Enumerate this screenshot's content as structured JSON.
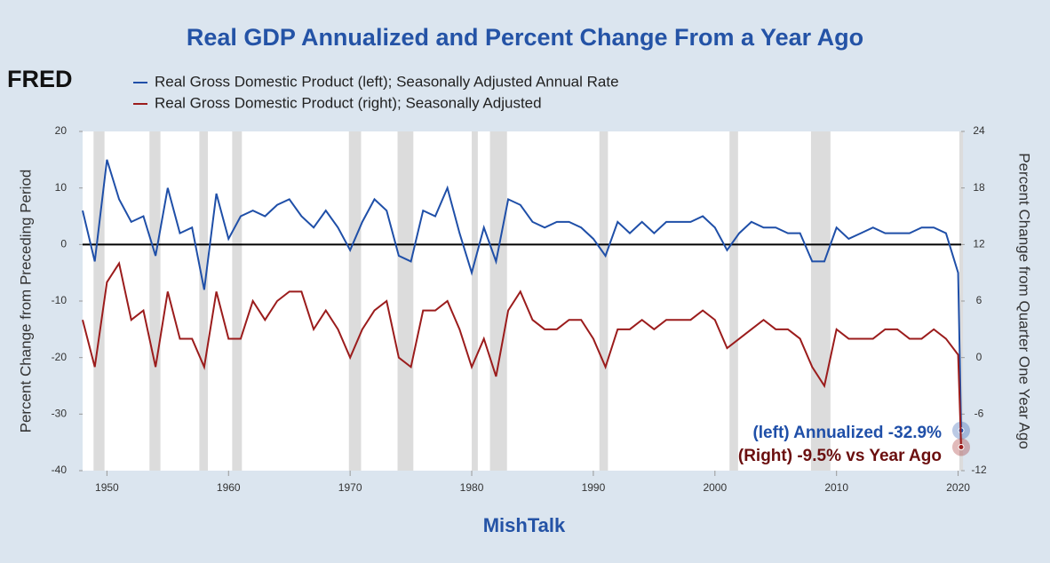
{
  "chart_data": {
    "type": "line",
    "title": "Real GDP Annualized and Percent Change From a Year Ago",
    "logo": "FRED",
    "xlabel": "MishTalk",
    "ylabel": "Percent Change from Preceding Period",
    "y2label": "Percent Change from Quarter One Year Ago",
    "x": [
      1948,
      1949,
      1950,
      1951,
      1952,
      1953,
      1954,
      1955,
      1956,
      1957,
      1958,
      1959,
      1960,
      1961,
      1962,
      1963,
      1964,
      1965,
      1966,
      1967,
      1968,
      1969,
      1970,
      1971,
      1972,
      1973,
      1974,
      1975,
      1976,
      1977,
      1978,
      1979,
      1980,
      1981,
      1982,
      1983,
      1984,
      1985,
      1986,
      1987,
      1988,
      1989,
      1990,
      1991,
      1992,
      1993,
      1994,
      1995,
      1996,
      1997,
      1998,
      1999,
      2000,
      2001,
      2002,
      2003,
      2004,
      2005,
      2006,
      2007,
      2008,
      2009,
      2010,
      2011,
      2012,
      2013,
      2014,
      2015,
      2016,
      2017,
      2018,
      2019,
      2020,
      2020.25
    ],
    "series": [
      {
        "name": "Real Gross Domestic Product (left); Seasonally Adjusted Annual Rate",
        "color": "#1f4fa8",
        "axis": "y",
        "values": [
          6,
          -3,
          15,
          8,
          4,
          5,
          -2,
          10,
          2,
          3,
          -8,
          9,
          1,
          5,
          6,
          5,
          7,
          8,
          5,
          3,
          6,
          3,
          -1,
          4,
          8,
          6,
          -2,
          -3,
          6,
          5,
          10,
          2,
          -5,
          3,
          -3,
          8,
          7,
          4,
          3,
          4,
          4,
          3,
          1,
          -2,
          4,
          2,
          4,
          2,
          4,
          4,
          4,
          5,
          3,
          -1,
          2,
          4,
          3,
          3,
          2,
          2,
          -3,
          -3,
          3,
          1,
          2,
          3,
          2,
          2,
          2,
          3,
          3,
          2,
          -5,
          -32.9
        ]
      },
      {
        "name": "Real Gross Domestic Product (right); Seasonally Adjusted",
        "color": "#9b1c1c",
        "axis": "y2",
        "values": [
          4,
          -1,
          8,
          10,
          4,
          5,
          -1,
          7,
          2,
          2,
          -1,
          7,
          2,
          2,
          6,
          4,
          6,
          7,
          7,
          3,
          5,
          3,
          0,
          3,
          5,
          6,
          0,
          -1,
          5,
          5,
          6,
          3,
          -1,
          2,
          -2,
          5,
          7,
          4,
          3,
          3,
          4,
          4,
          2,
          -1,
          3,
          3,
          4,
          3,
          4,
          4,
          4,
          5,
          4,
          1,
          2,
          3,
          4,
          3,
          3,
          2,
          -1,
          -3,
          3,
          2,
          2,
          2,
          3,
          3,
          2,
          2,
          3,
          2,
          0.3,
          -9.5
        ]
      }
    ],
    "recessions": [
      [
        1948.9,
        1949.8
      ],
      [
        1953.5,
        1954.4
      ],
      [
        1957.6,
        1958.3
      ],
      [
        1960.3,
        1961.1
      ],
      [
        1969.9,
        1970.9
      ],
      [
        1973.9,
        1975.2
      ],
      [
        1980.0,
        1980.5
      ],
      [
        1981.5,
        1982.9
      ],
      [
        1990.5,
        1991.2
      ],
      [
        2001.2,
        2001.9
      ],
      [
        2007.9,
        2009.5
      ],
      [
        2020.1,
        2020.4
      ]
    ],
    "xlim": [
      1948,
      2020.25
    ],
    "xticks": [
      1950,
      1960,
      1970,
      1980,
      1990,
      2000,
      2010,
      2020
    ],
    "ylim": [
      -40,
      20
    ],
    "yticks": [
      20,
      10,
      0,
      -10,
      -20,
      -30,
      -40
    ],
    "y2lim": [
      -12,
      24
    ],
    "y2ticks": [
      24,
      18,
      12,
      6,
      0,
      -6,
      -12
    ],
    "zero_line": true,
    "annotations": [
      {
        "text": "(left) Annualized -32.9%",
        "color": "#1f4fa8"
      },
      {
        "text": "(Right) -9.5% vs Year Ago",
        "color": "#6b0f0f"
      }
    ]
  }
}
